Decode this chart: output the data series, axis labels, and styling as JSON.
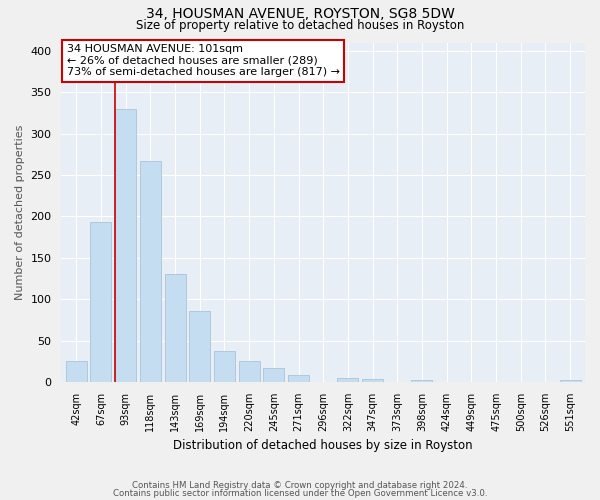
{
  "title": "34, HOUSMAN AVENUE, ROYSTON, SG8 5DW",
  "subtitle": "Size of property relative to detached houses in Royston",
  "xlabel": "Distribution of detached houses by size in Royston",
  "ylabel": "Number of detached properties",
  "footnote1": "Contains HM Land Registry data © Crown copyright and database right 2024.",
  "footnote2": "Contains public sector information licensed under the Open Government Licence v3.0.",
  "bar_labels": [
    "42sqm",
    "67sqm",
    "93sqm",
    "118sqm",
    "143sqm",
    "169sqm",
    "194sqm",
    "220sqm",
    "245sqm",
    "271sqm",
    "296sqm",
    "322sqm",
    "347sqm",
    "373sqm",
    "398sqm",
    "424sqm",
    "449sqm",
    "475sqm",
    "500sqm",
    "526sqm",
    "551sqm"
  ],
  "bar_values": [
    25,
    193,
    330,
    267,
    130,
    86,
    38,
    25,
    17,
    8,
    0,
    5,
    4,
    0,
    3,
    0,
    0,
    0,
    0,
    0,
    3
  ],
  "bar_color": "#c5ddf0",
  "bar_edge_color": "#a0bdd4",
  "property_label": "34 HOUSMAN AVENUE: 101sqm",
  "annotation_line1": "← 26% of detached houses are smaller (289)",
  "annotation_line2": "73% of semi-detached houses are larger (817) →",
  "vline_color": "#cc0000",
  "vline_bar_index": 2,
  "ylim": [
    0,
    410
  ],
  "yticks": [
    0,
    50,
    100,
    150,
    200,
    250,
    300,
    350,
    400
  ],
  "bg_color": "#f0f0f0",
  "plot_bg_color": "#e8eef5",
  "grid_color": "#ffffff"
}
